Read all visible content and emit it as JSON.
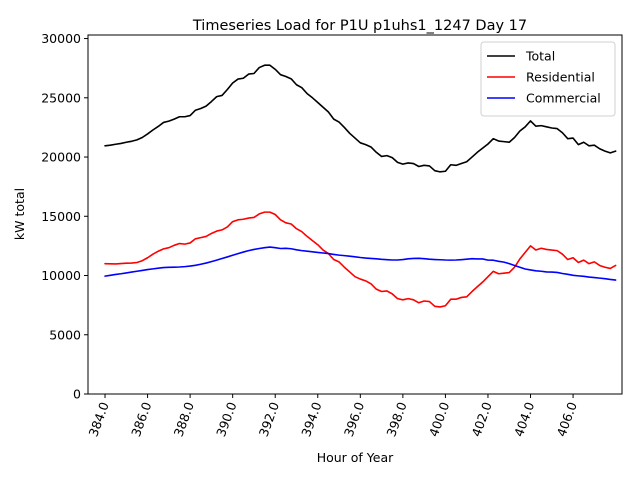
{
  "chart_data": {
    "type": "line",
    "title": "Timeseries Load for P1U p1uhs1_1247  Day 17",
    "xlabel": "Hour of Year",
    "ylabel": "kW total",
    "xlim": [
      383.2,
      408.3
    ],
    "ylim": [
      0,
      30300
    ],
    "xticks": [
      384,
      386,
      388,
      390,
      392,
      394,
      396,
      398,
      400,
      402,
      404,
      406
    ],
    "xtick_labels": [
      "384.0",
      "386.0",
      "388.0",
      "390.0",
      "392.0",
      "394.0",
      "396.0",
      "398.0",
      "400.0",
      "402.0",
      "404.0",
      "406.0"
    ],
    "yticks": [
      0,
      5000,
      10000,
      15000,
      20000,
      25000,
      30000
    ],
    "ytick_labels": [
      "0",
      "5000",
      "10000",
      "15000",
      "20000",
      "25000",
      "30000"
    ],
    "legend_position": "top-right",
    "x_start": 384.0,
    "x_step": 0.25,
    "series": [
      {
        "name": "Total",
        "color": "#000000",
        "values": [
          20950,
          21000,
          21080,
          21150,
          21250,
          21330,
          21450,
          21650,
          21950,
          22280,
          22580,
          22920,
          23030,
          23200,
          23400,
          23400,
          23500,
          23950,
          24100,
          24300,
          24680,
          25100,
          25200,
          25700,
          26250,
          26580,
          26650,
          27000,
          27050,
          27550,
          27750,
          27750,
          27400,
          26950,
          26800,
          26600,
          26100,
          25850,
          25350,
          25000,
          24600,
          24200,
          23800,
          23200,
          22950,
          22500,
          22000,
          21600,
          21200,
          21050,
          20850,
          20400,
          20050,
          20120,
          19950,
          19550,
          19400,
          19500,
          19450,
          19200,
          19300,
          19250,
          18850,
          18750,
          18800,
          19350,
          19300,
          19450,
          19600,
          20000,
          20400,
          20750,
          21100,
          21550,
          21350,
          21300,
          21250,
          21650,
          22200,
          22550,
          23050,
          22600,
          22650,
          22550,
          22450,
          22400,
          22050,
          21550,
          21600,
          21050,
          21250,
          20950,
          21000,
          20700,
          20500,
          20350,
          20500
        ]
      },
      {
        "name": "Residential",
        "color": "#ff0000",
        "values": [
          11000,
          10990,
          10980,
          11010,
          11040,
          11050,
          11100,
          11250,
          11500,
          11800,
          12050,
          12250,
          12350,
          12550,
          12700,
          12650,
          12750,
          13100,
          13200,
          13300,
          13550,
          13750,
          13850,
          14100,
          14550,
          14700,
          14750,
          14850,
          14900,
          15200,
          15350,
          15350,
          15150,
          14700,
          14450,
          14350,
          13950,
          13700,
          13300,
          12950,
          12600,
          12150,
          11850,
          11350,
          11150,
          10700,
          10300,
          9900,
          9700,
          9550,
          9300,
          8850,
          8650,
          8700,
          8450,
          8050,
          7950,
          8050,
          7950,
          7700,
          7850,
          7800,
          7400,
          7350,
          7450,
          8000,
          8000,
          8150,
          8200,
          8650,
          9050,
          9450,
          9900,
          10350,
          10150,
          10200,
          10250,
          10700,
          11400,
          11950,
          12500,
          12150,
          12300,
          12200,
          12150,
          12100,
          11800,
          11350,
          11500,
          11100,
          11300,
          11000,
          11150,
          10850,
          10700,
          10600,
          10850
        ]
      },
      {
        "name": "Commercial",
        "color": "#0000ff",
        "values": [
          9950,
          10020,
          10090,
          10150,
          10220,
          10290,
          10360,
          10430,
          10500,
          10560,
          10620,
          10670,
          10690,
          10700,
          10720,
          10750,
          10800,
          10860,
          10950,
          11050,
          11170,
          11300,
          11440,
          11570,
          11710,
          11850,
          11980,
          12100,
          12200,
          12280,
          12350,
          12400,
          12350,
          12280,
          12300,
          12260,
          12170,
          12100,
          12050,
          12000,
          11950,
          11900,
          11850,
          11780,
          11720,
          11680,
          11630,
          11580,
          11520,
          11470,
          11440,
          11410,
          11370,
          11340,
          11310,
          11310,
          11350,
          11410,
          11440,
          11450,
          11420,
          11380,
          11350,
          11330,
          11310,
          11300,
          11310,
          11340,
          11380,
          11420,
          11400,
          11400,
          11300,
          11290,
          11200,
          11130,
          11000,
          10850,
          10700,
          10550,
          10470,
          10400,
          10360,
          10300,
          10290,
          10260,
          10170,
          10100,
          10020,
          9970,
          9930,
          9870,
          9830,
          9780,
          9730,
          9670,
          9620
        ]
      }
    ]
  }
}
